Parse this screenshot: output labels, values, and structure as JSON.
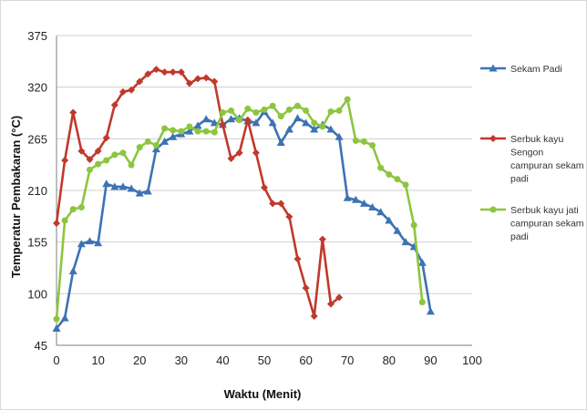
{
  "chart_data": {
    "type": "line",
    "xlabel": "Waktu (Menit)",
    "ylabel": "Temperatur Pembakaran (°C)",
    "xlim": [
      0,
      100
    ],
    "ylim": [
      45,
      375
    ],
    "xticks": [
      0,
      10,
      20,
      30,
      40,
      50,
      60,
      70,
      80,
      90,
      100
    ],
    "yticks": [
      45,
      100,
      155,
      210,
      265,
      320,
      375
    ],
    "grid": "horizontal",
    "legend": "right",
    "series": [
      {
        "name": "Sekam Padi",
        "legend_lines": [
          "Sekam Padi"
        ],
        "color": "#3d72b4",
        "marker": "triangle",
        "x": [
          0,
          2,
          4,
          6,
          8,
          10,
          12,
          14,
          16,
          18,
          20,
          22,
          24,
          26,
          28,
          30,
          32,
          34,
          36,
          38,
          40,
          42,
          44,
          46,
          48,
          50,
          52,
          54,
          56,
          58,
          60,
          62,
          64,
          66,
          68,
          70,
          72,
          74,
          76,
          78,
          80,
          82,
          84,
          86,
          88,
          90
        ],
        "y": [
          63,
          74,
          124,
          153,
          156,
          154,
          217,
          214,
          214,
          212,
          207,
          209,
          254,
          262,
          267,
          270,
          273,
          279,
          286,
          282,
          280,
          286,
          287,
          284,
          282,
          294,
          282,
          261,
          275,
          287,
          282,
          275,
          280,
          275,
          267,
          202,
          200,
          196,
          192,
          187,
          178,
          167,
          155,
          150,
          133,
          81
        ]
      },
      {
        "name": "Serbuk kayu Sengon campuran sekam padi",
        "legend_lines": [
          "Serbuk kayu",
          "Sengon",
          "campuran sekam",
          "padi"
        ],
        "color": "#c0392b",
        "marker": "diamond",
        "x": [
          0,
          2,
          4,
          6,
          8,
          10,
          12,
          14,
          16,
          18,
          20,
          22,
          24,
          26,
          28,
          30,
          32,
          34,
          36,
          38,
          40,
          42,
          44,
          46,
          48,
          50,
          52,
          54,
          56,
          58,
          60,
          62,
          64,
          66,
          68
        ],
        "y": [
          175,
          242,
          293,
          252,
          243,
          252,
          266,
          301,
          315,
          317,
          326,
          334,
          339,
          336,
          336,
          336,
          324,
          329,
          330,
          326,
          280,
          244,
          250,
          285,
          250,
          213,
          196,
          196,
          182,
          137,
          106,
          76,
          158,
          89,
          96
        ]
      },
      {
        "name": "Serbuk kayu jati campuran sekam padi",
        "legend_lines": [
          "Serbuk kayu jati",
          "campuran sekam",
          "padi"
        ],
        "color": "#8cc63f",
        "marker": "circle",
        "x": [
          0,
          2,
          4,
          6,
          8,
          10,
          12,
          14,
          16,
          18,
          20,
          22,
          24,
          26,
          28,
          30,
          32,
          34,
          36,
          38,
          40,
          42,
          44,
          46,
          48,
          50,
          52,
          54,
          56,
          58,
          60,
          62,
          64,
          66,
          68,
          70,
          72,
          74,
          76,
          78,
          80,
          82,
          84,
          86,
          88
        ],
        "y": [
          73,
          178,
          190,
          192,
          232,
          238,
          242,
          248,
          250,
          237,
          256,
          262,
          258,
          276,
          274,
          273,
          278,
          273,
          273,
          272,
          293,
          295,
          285,
          297,
          293,
          296,
          300,
          289,
          296,
          300,
          295,
          282,
          278,
          294,
          295,
          307,
          263,
          262,
          258,
          234,
          227,
          222,
          216,
          173,
          91
        ]
      }
    ]
  }
}
